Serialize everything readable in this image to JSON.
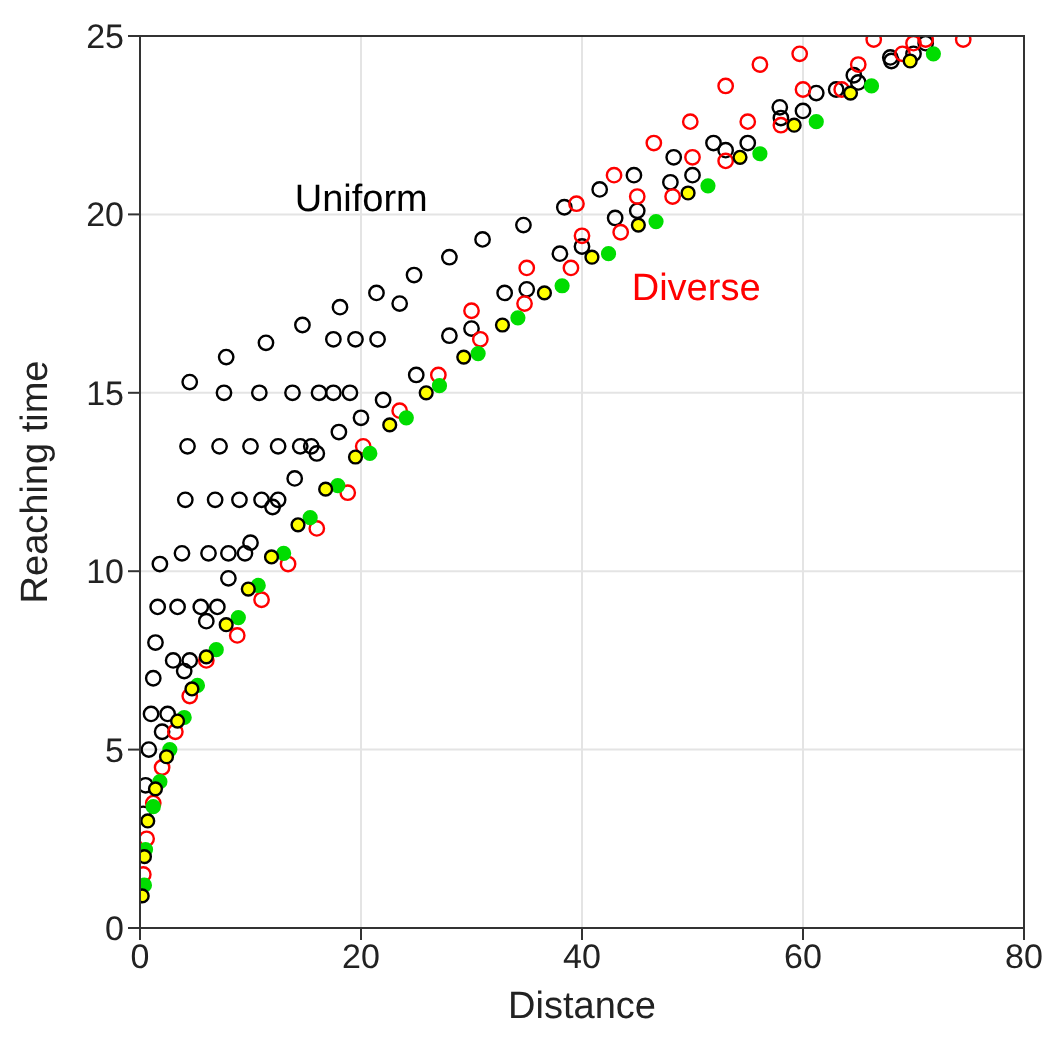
{
  "chart_data": {
    "type": "scatter",
    "xlabel": "Distance",
    "ylabel": "Reaching time",
    "xlim": [
      0,
      80
    ],
    "ylim": [
      0,
      25
    ],
    "xticks": [
      0,
      20,
      40,
      60,
      80
    ],
    "yticks": [
      0,
      5,
      10,
      15,
      20,
      25
    ],
    "grid": true,
    "legend": false,
    "marker": "circle",
    "series": [
      {
        "name": "Uniform",
        "color": "#000000",
        "x": [
          0.3,
          0.5,
          0.8,
          1,
          1.2,
          1.4,
          1.6,
          1.8,
          2.5,
          3,
          3.4,
          3.8,
          4.1,
          4.3,
          4.5,
          4.5,
          5.5,
          6.2,
          6.8,
          7.2,
          7.6,
          7.8,
          7,
          8,
          9,
          10,
          10.8,
          11.4,
          9.5,
          11,
          12.5,
          13.8,
          14.7,
          12.5,
          14.5,
          16.2,
          17.5,
          18.1,
          15.5,
          17.5,
          19.5,
          21.4,
          19,
          21.5,
          23.5,
          24.8,
          28,
          31,
          34.7,
          38.4,
          41.6,
          44.7,
          48.3,
          51.9,
          57.9,
          61.2,
          64.6,
          67.9,
          71.1,
          25,
          30,
          35,
          40,
          45,
          50,
          55,
          60,
          65,
          70,
          28,
          33,
          38,
          43,
          48,
          53,
          58,
          63,
          68,
          22,
          20,
          18,
          16,
          14,
          12,
          10,
          8,
          6,
          4,
          2
        ],
        "values": [
          3.2,
          4,
          5,
          6,
          7,
          8,
          9,
          10.2,
          6,
          7.5,
          9,
          10.5,
          12,
          13.5,
          15.3,
          7.5,
          9,
          10.5,
          12,
          13.5,
          15,
          16,
          9,
          10.5,
          12,
          13.5,
          15,
          16.4,
          10.5,
          12,
          13.5,
          15,
          16.9,
          12,
          13.5,
          15,
          16.5,
          17.4,
          13.5,
          15,
          16.5,
          17.8,
          15,
          16.5,
          17.5,
          18.3,
          18.8,
          19.3,
          19.7,
          20.2,
          20.7,
          21.1,
          21.6,
          22,
          23,
          23.4,
          23.9,
          24.4,
          24.8,
          15.5,
          16.8,
          17.9,
          19.1,
          20.1,
          21.1,
          22,
          22.9,
          23.7,
          24.5,
          16.6,
          17.8,
          18.9,
          19.9,
          20.9,
          21.8,
          22.7,
          23.5,
          24.3,
          14.8,
          14.3,
          13.9,
          13.3,
          12.6,
          11.8,
          10.8,
          9.8,
          8.6,
          7.2,
          5.5
        ]
      },
      {
        "name": "Diverse",
        "color": "#ff0000",
        "x": [
          0.3,
          0.6,
          1.2,
          2,
          3.2,
          4.5,
          6,
          8.8,
          11,
          13.4,
          16,
          18.8,
          20.2,
          23.5,
          27,
          30.8,
          34.8,
          39,
          43.5,
          48.2,
          53,
          58,
          63.5,
          69,
          74.5,
          71.1,
          66.4,
          59.7,
          56.1,
          53,
          49.8,
          46.5,
          42.9,
          39.5,
          45,
          50,
          55,
          60,
          65,
          70,
          40,
          35,
          30
        ],
        "values": [
          1.5,
          2.5,
          3.5,
          4.5,
          5.5,
          6.5,
          7.5,
          8.2,
          9.2,
          10.2,
          11.2,
          12.2,
          13.5,
          14.5,
          15.5,
          16.5,
          17.5,
          18.5,
          19.5,
          20.5,
          21.5,
          22.5,
          23.5,
          24.5,
          24.9,
          24.9,
          24.9,
          24.5,
          24.2,
          23.6,
          22.6,
          22,
          21.1,
          20.3,
          20.5,
          21.6,
          22.6,
          23.5,
          24.2,
          24.8,
          19.4,
          18.5,
          17.3
        ]
      },
      {
        "color": "#00dd00",
        "x": [
          71.8,
          66.2,
          61.2,
          56.1,
          51.4,
          46.7,
          42.4,
          38.2,
          34.2,
          30.6,
          27.1,
          24.1,
          20.8,
          17.9,
          15.4,
          13,
          10.7,
          8.9,
          6.9,
          5.2,
          4,
          2.7,
          1.8,
          1.2,
          0.5,
          0.4
        ],
        "values": [
          24.5,
          23.6,
          22.6,
          21.7,
          20.8,
          19.8,
          18.9,
          18,
          17.1,
          16.1,
          15.2,
          14.3,
          13.3,
          12.4,
          11.5,
          10.5,
          9.6,
          8.7,
          7.8,
          6.8,
          5.9,
          5,
          4.1,
          3.4,
          2.2,
          1.2
        ]
      },
      {
        "color": "#ffff00",
        "x": [
          69.7,
          64.3,
          59.2,
          54.3,
          49.6,
          45.1,
          40.9,
          36.6,
          32.8,
          29.3,
          25.9,
          22.6,
          19.5,
          16.8,
          14.3,
          11.9,
          9.8,
          7.8,
          6,
          4.7,
          3.4,
          2.4,
          1.4,
          0.7,
          0.4,
          0.2
        ],
        "values": [
          24.3,
          23.4,
          22.5,
          21.6,
          20.6,
          19.7,
          18.8,
          17.8,
          16.9,
          16,
          15,
          14.1,
          13.2,
          12.3,
          11.3,
          10.4,
          9.5,
          8.5,
          7.6,
          6.7,
          5.8,
          4.8,
          3.9,
          3,
          2,
          0.9
        ]
      }
    ]
  }
}
